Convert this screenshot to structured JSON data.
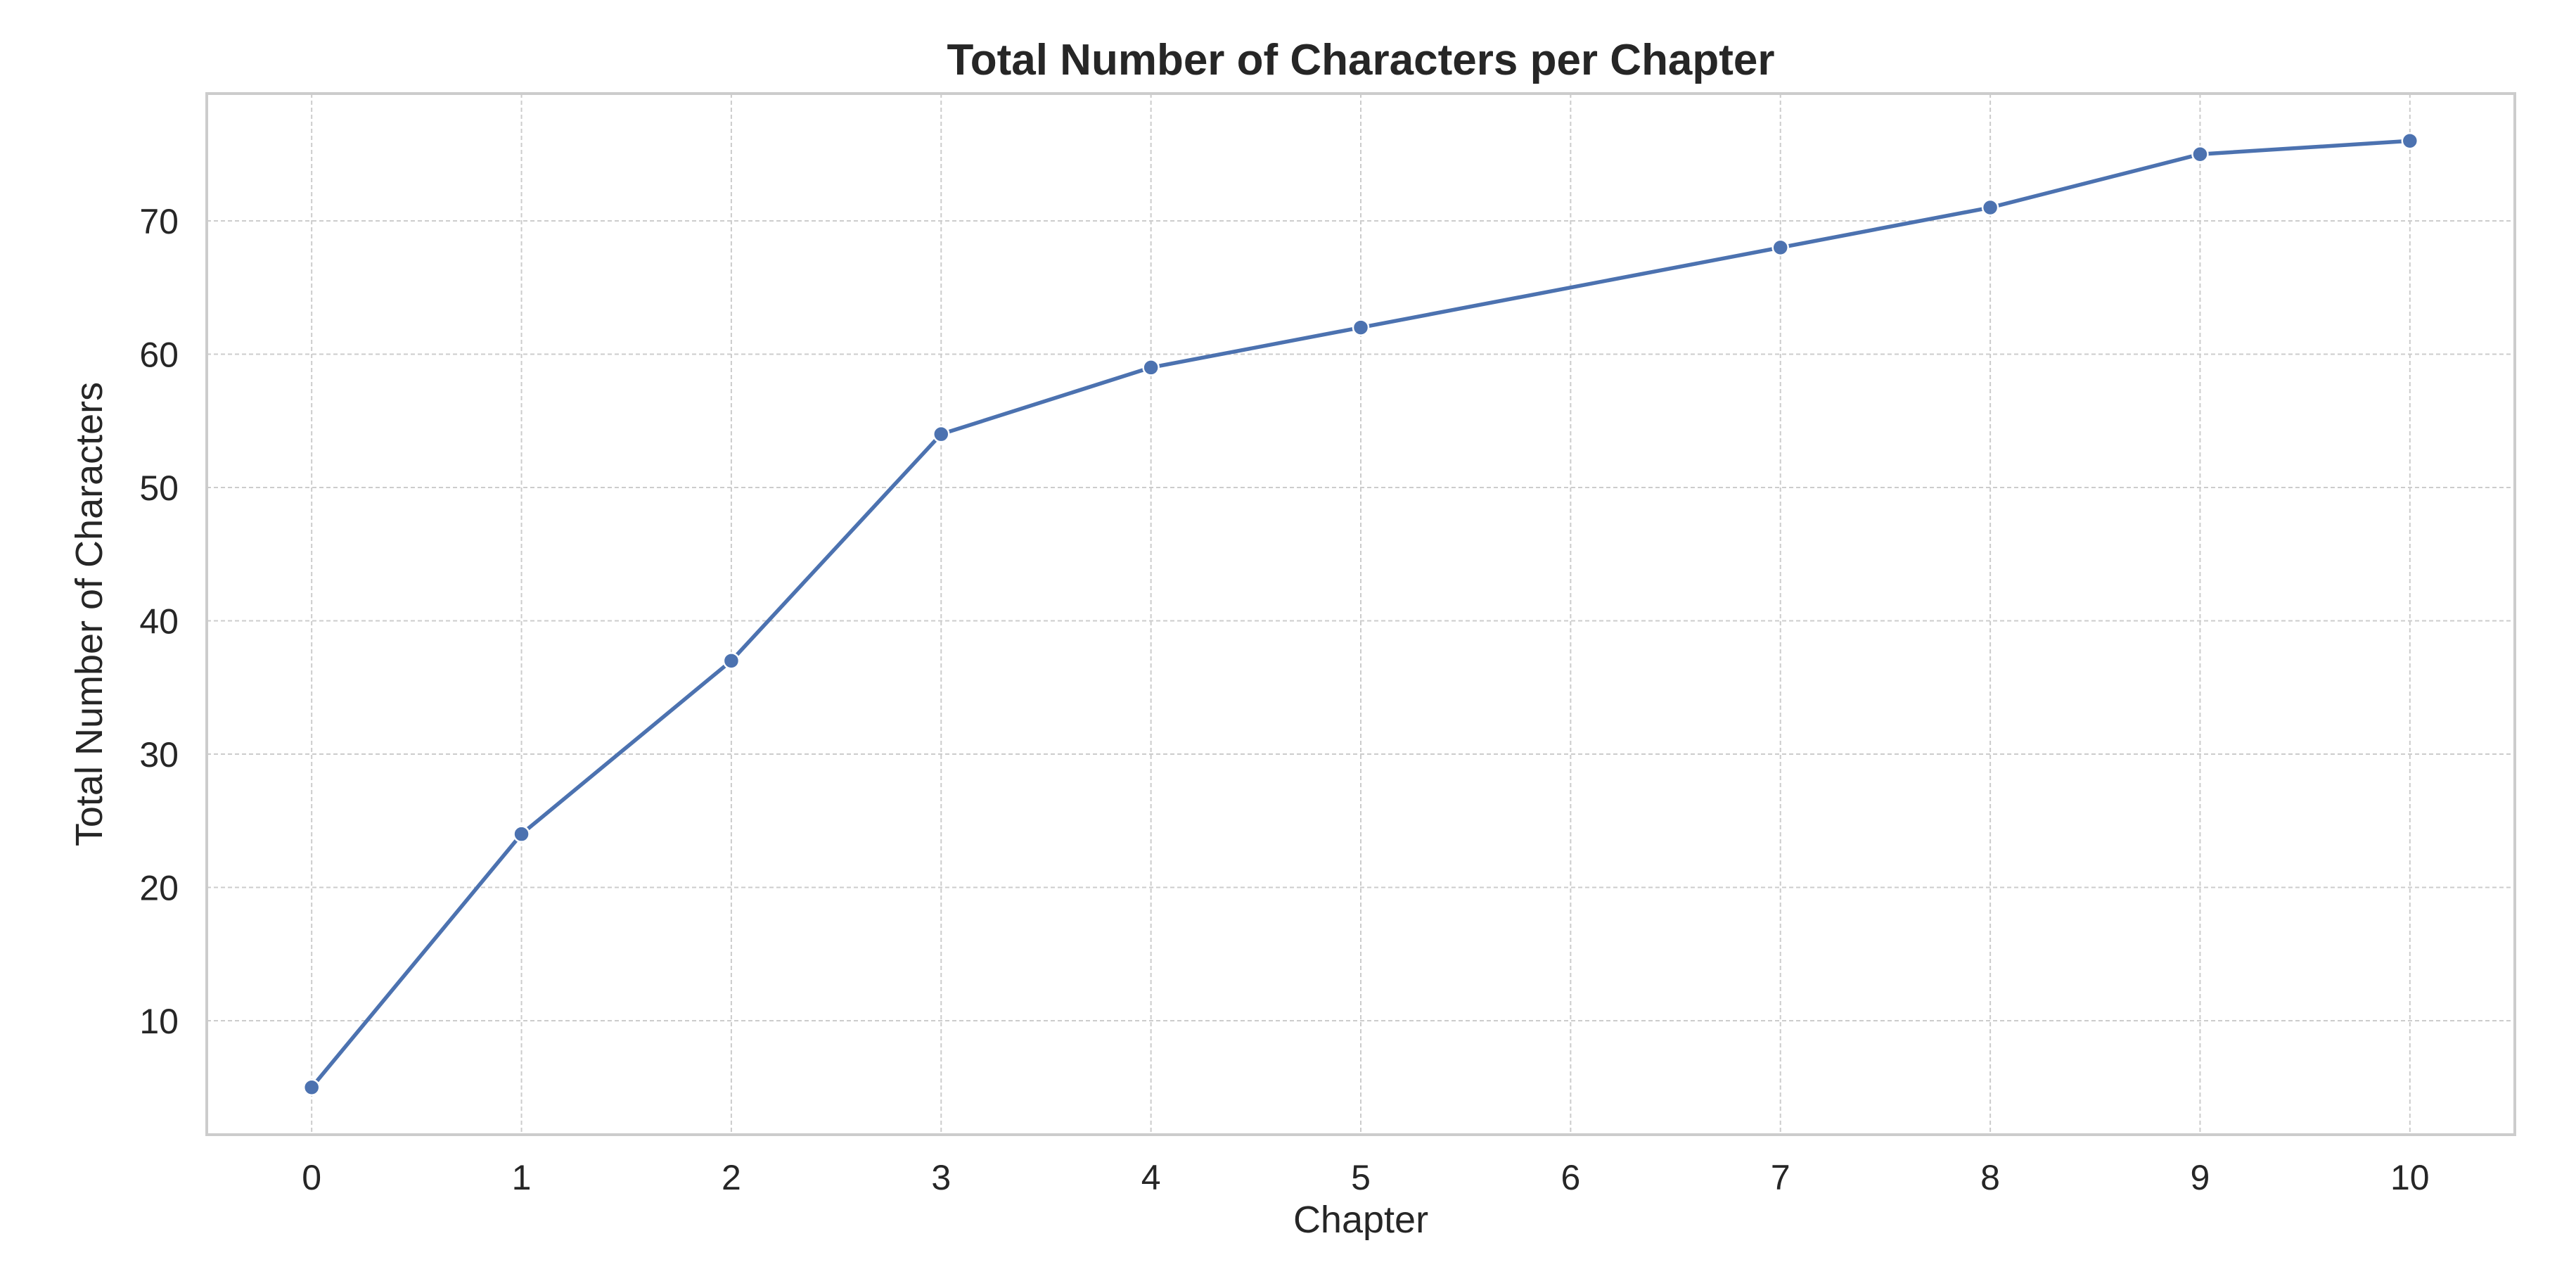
{
  "chart_data": {
    "type": "line",
    "title": "Total Number of Characters per Chapter",
    "xlabel": "Chapter",
    "ylabel": "Total Number of Characters",
    "x": [
      0,
      1,
      2,
      3,
      4,
      5,
      7,
      8,
      9,
      10
    ],
    "series": [
      {
        "values": [
          5,
          24,
          37,
          54,
          59,
          62,
          68,
          71,
          75,
          76
        ]
      }
    ],
    "xticks": [
      0,
      1,
      2,
      3,
      4,
      5,
      6,
      7,
      8,
      9,
      10
    ],
    "yticks": [
      10,
      20,
      30,
      40,
      50,
      60,
      70
    ],
    "xlim": [
      -0.5,
      10.5
    ],
    "ylim": [
      1.45,
      79.55
    ],
    "grid": true,
    "grid_style": "dashed",
    "colors": {
      "line": "#4C72B0",
      "marker": "#4C72B0",
      "marker_edge": "#ffffff",
      "grid": "#cccccc",
      "frame": "#cccccc",
      "text": "#262626"
    }
  }
}
